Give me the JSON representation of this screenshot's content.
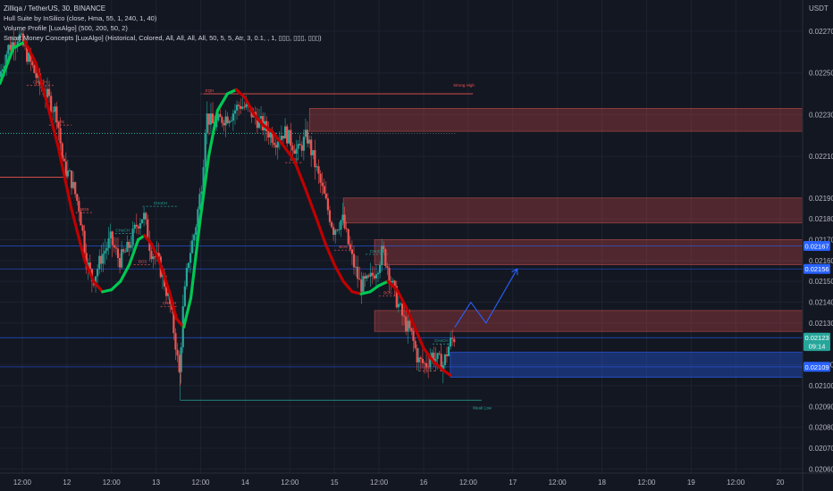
{
  "header": {
    "title": "Zilliqa / TetherUS, 30, BINANCE",
    "indicators": [
      "Hull Suite by InSilico (close, Hma, 55, 1, 240, 1, 40)",
      "Volume Profile [LuxAlgo] (500, 200, 50, 2)",
      "Smart Money Concepts [LuxAlgo] (Historical, Colored, All, All, All, All, 50, 5, 5, Atr, 3, 0.1, , 1, ▯▯▯, ▯▯▯, ▯▯▯)"
    ]
  },
  "price_axis": {
    "currency": "USDT",
    "ticks": [
      "0.02270",
      "0.02250",
      "0.02230",
      "0.02210",
      "0.02190",
      "0.02180",
      "0.02170",
      "0.02160",
      "0.02150",
      "0.02140",
      "0.02130",
      "0.02110",
      "0.02100",
      "0.02090",
      "0.02080",
      "0.02070",
      "0.02060"
    ],
    "badges": [
      {
        "text": "0.02167",
        "value": 0.02167,
        "color": "#2962ff"
      },
      {
        "text": "0.02156",
        "value": 0.02156,
        "color": "#2962ff"
      },
      {
        "text": "0.02123",
        "value": 0.02123,
        "color": "#26a69a"
      },
      {
        "text": "09:14",
        "value": 0.02119,
        "color": "#26a69a"
      },
      {
        "text": "0.02109",
        "value": 0.02109,
        "color": "#2962ff"
      }
    ]
  },
  "time_axis": {
    "ticks": [
      "12:00",
      "12",
      "12:00",
      "13",
      "12:00",
      "14",
      "12:00",
      "15",
      "12:00",
      "16",
      "12:00",
      "17",
      "12:00",
      "18",
      "12:00",
      "19",
      "12:00",
      "20"
    ]
  },
  "annotations": {
    "strong_high": "Strong High",
    "weak_low": "Weak Low",
    "eqh": "EQH",
    "choch": "CHoCH",
    "bos": "BOS"
  },
  "colors": {
    "background": "#131722",
    "bull": "#26a69a",
    "bear": "#ef5350",
    "hull_up": "#00c853",
    "hull_down": "#c00000",
    "blue_line": "#2962ff",
    "zone_red": "rgba(239,83,80,0.28)",
    "zone_blue": "rgba(41,98,255,0.35)"
  },
  "chart_data": {
    "type": "candlestick",
    "symbol": "ZILUSDT",
    "interval": "30",
    "ylim": [
      0.02058,
      0.02285
    ],
    "x_range_days": [
      11.5,
      20.5
    ],
    "close_path": [
      [
        11.5,
        0.02248
      ],
      [
        11.6,
        0.02262
      ],
      [
        11.72,
        0.02268
      ],
      [
        11.85,
        0.02255
      ],
      [
        11.95,
        0.02245
      ],
      [
        12.05,
        0.02238
      ],
      [
        12.15,
        0.0223
      ],
      [
        12.22,
        0.02205
      ],
      [
        12.3,
        0.022
      ],
      [
        12.4,
        0.02185
      ],
      [
        12.48,
        0.0216
      ],
      [
        12.55,
        0.0215
      ],
      [
        12.65,
        0.02162
      ],
      [
        12.75,
        0.0217
      ],
      [
        12.85,
        0.0216
      ],
      [
        12.95,
        0.02166
      ],
      [
        13.05,
        0.02178
      ],
      [
        13.12,
        0.02182
      ],
      [
        13.2,
        0.02165
      ],
      [
        13.28,
        0.0216
      ],
      [
        13.35,
        0.0215
      ],
      [
        13.42,
        0.02138
      ],
      [
        13.48,
        0.0212
      ],
      [
        13.52,
        0.02105
      ],
      [
        13.56,
        0.02135
      ],
      [
        13.62,
        0.0216
      ],
      [
        13.7,
        0.02175
      ],
      [
        13.78,
        0.022
      ],
      [
        13.82,
        0.0223
      ],
      [
        13.9,
        0.02225
      ],
      [
        14.0,
        0.02228
      ],
      [
        14.1,
        0.0223
      ],
      [
        14.2,
        0.02235
      ],
      [
        14.3,
        0.02232
      ],
      [
        14.45,
        0.02225
      ],
      [
        14.6,
        0.02218
      ],
      [
        14.7,
        0.02222
      ],
      [
        14.85,
        0.02212
      ],
      [
        14.95,
        0.0222
      ],
      [
        15.05,
        0.02205
      ],
      [
        15.15,
        0.0219
      ],
      [
        15.25,
        0.02175
      ],
      [
        15.35,
        0.0218
      ],
      [
        15.45,
        0.02162
      ],
      [
        15.55,
        0.02148
      ],
      [
        15.65,
        0.0215
      ],
      [
        15.75,
        0.02158
      ],
      [
        15.8,
        0.02165
      ],
      [
        15.85,
        0.02158
      ],
      [
        15.9,
        0.0215
      ],
      [
        15.95,
        0.02142
      ],
      [
        16.05,
        0.0213
      ],
      [
        16.12,
        0.02125
      ],
      [
        16.2,
        0.02112
      ],
      [
        16.28,
        0.0211
      ],
      [
        16.35,
        0.02115
      ],
      [
        16.42,
        0.02112
      ],
      [
        16.48,
        0.0211
      ],
      [
        16.55,
        0.0212
      ],
      [
        16.6,
        0.02123
      ]
    ],
    "hull_path": [
      [
        11.5,
        0.02245
      ],
      [
        11.65,
        0.02262
      ],
      [
        11.78,
        0.02265
      ],
      [
        11.9,
        0.02255
      ],
      [
        12.0,
        0.0224
      ],
      [
        12.15,
        0.02215
      ],
      [
        12.3,
        0.02185
      ],
      [
        12.45,
        0.0216
      ],
      [
        12.55,
        0.0215
      ],
      [
        12.65,
        0.02145
      ],
      [
        12.75,
        0.02146
      ],
      [
        12.85,
        0.0215
      ],
      [
        12.95,
        0.02158
      ],
      [
        13.05,
        0.0217
      ],
      [
        13.12,
        0.02172
      ],
      [
        13.2,
        0.02168
      ],
      [
        13.3,
        0.02158
      ],
      [
        13.4,
        0.02145
      ],
      [
        13.48,
        0.02132
      ],
      [
        13.56,
        0.02128
      ],
      [
        13.64,
        0.02142
      ],
      [
        13.74,
        0.02178
      ],
      [
        13.84,
        0.0221
      ],
      [
        13.94,
        0.02232
      ],
      [
        14.05,
        0.0224
      ],
      [
        14.15,
        0.02242
      ],
      [
        14.25,
        0.02238
      ],
      [
        14.35,
        0.0223
      ],
      [
        14.45,
        0.02225
      ],
      [
        14.55,
        0.02222
      ],
      [
        14.68,
        0.02215
      ],
      [
        14.8,
        0.02208
      ],
      [
        14.92,
        0.02195
      ],
      [
        15.05,
        0.0218
      ],
      [
        15.15,
        0.02168
      ],
      [
        15.25,
        0.02158
      ],
      [
        15.35,
        0.0215
      ],
      [
        15.45,
        0.02145
      ],
      [
        15.55,
        0.02144
      ],
      [
        15.65,
        0.02145
      ],
      [
        15.75,
        0.02148
      ],
      [
        15.85,
        0.0215
      ],
      [
        15.95,
        0.02146
      ],
      [
        16.05,
        0.02138
      ],
      [
        16.15,
        0.02128
      ],
      [
        16.25,
        0.02118
      ],
      [
        16.35,
        0.02112
      ],
      [
        16.45,
        0.02108
      ],
      [
        16.55,
        0.02105
      ]
    ],
    "zones": [
      {
        "from": 14.97,
        "to": 20.5,
        "top": 0.02233,
        "bottom": 0.02222,
        "kind": "supply"
      },
      {
        "from": 15.35,
        "to": 20.5,
        "top": 0.0219,
        "bottom": 0.02178,
        "kind": "supply"
      },
      {
        "from": 15.7,
        "to": 20.5,
        "top": 0.0217,
        "bottom": 0.02158,
        "kind": "supply"
      },
      {
        "from": 15.7,
        "to": 20.5,
        "top": 0.02136,
        "bottom": 0.02126,
        "kind": "supply"
      },
      {
        "from": 16.55,
        "to": 20.5,
        "top": 0.02116,
        "bottom": 0.02104,
        "kind": "demand"
      }
    ],
    "levels": [
      {
        "price": 0.02167,
        "kind": "blue-line"
      },
      {
        "price": 0.02156,
        "kind": "blue-line"
      },
      {
        "price": 0.02123,
        "kind": "blue-line"
      },
      {
        "price": 0.02109,
        "kind": "blue-line"
      }
    ],
    "projection": [
      [
        16.6,
        0.02128
      ],
      [
        16.78,
        0.0214
      ],
      [
        16.95,
        0.0213
      ],
      [
        17.3,
        0.02156
      ]
    ],
    "grid": true
  }
}
